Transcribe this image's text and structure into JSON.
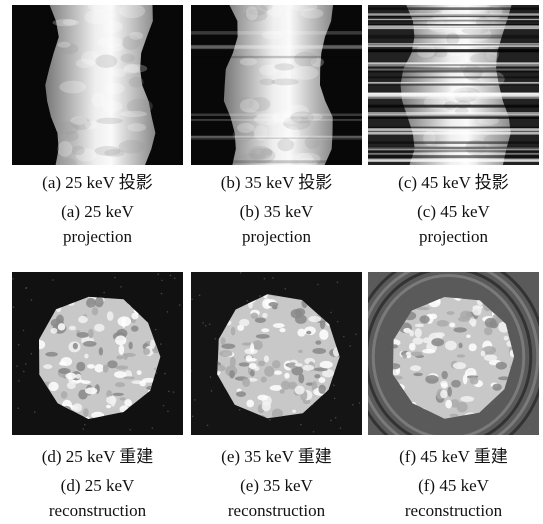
{
  "panels": [
    {
      "label": "(a) 25 keV 投影",
      "caption_en": [
        "(a) 25 keV",
        "projection"
      ]
    },
    {
      "label": "(b) 35 keV 投影",
      "caption_en": [
        "(b) 35 keV",
        "projection"
      ]
    },
    {
      "label": "(c) 45 keV 投影",
      "caption_en": [
        "(c) 45 keV",
        "projection"
      ]
    },
    {
      "label": "(d) 25 keV 重建",
      "caption_en": [
        "(d) 25 keV",
        "reconstruction"
      ]
    },
    {
      "label": "(e) 35 keV 重建",
      "caption_en": [
        "(e) 35 keV",
        "reconstruction"
      ]
    },
    {
      "label": "(f) 45 keV 重建",
      "caption_en": [
        "(f) 45 keV",
        "reconstruction"
      ]
    }
  ]
}
